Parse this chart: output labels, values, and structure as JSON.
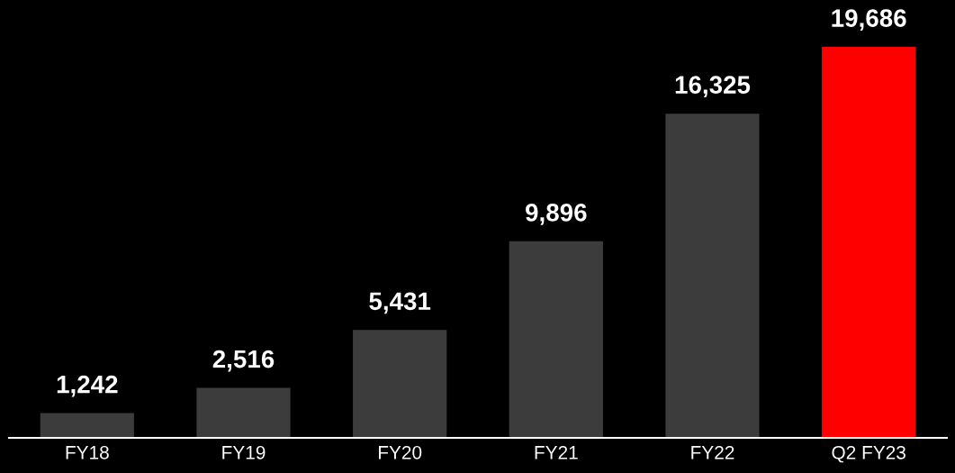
{
  "chart_data": {
    "type": "bar",
    "categories": [
      "FY18",
      "FY19",
      "FY20",
      "FY21",
      "FY22",
      "Q2 FY23"
    ],
    "values": [
      1242,
      2516,
      5431,
      9896,
      16325,
      19686
    ],
    "colors": [
      "#3c3c3c",
      "#3c3c3c",
      "#3c3c3c",
      "#3c3c3c",
      "#3c3c3c",
      "#ff0000"
    ],
    "value_labels": [
      "1,242",
      "2,516",
      "5,431",
      "9,896",
      "16,325",
      "19,686"
    ]
  }
}
